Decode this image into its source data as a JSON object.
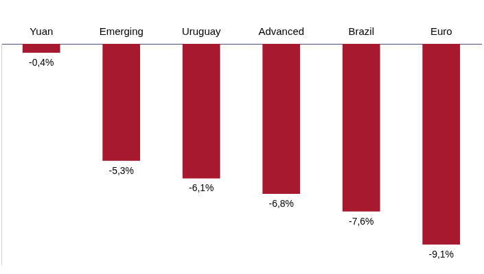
{
  "chart_data": {
    "type": "bar",
    "categories": [
      "Yuan",
      "Emerging",
      "Uruguay",
      "Advanced",
      "Brazil",
      "Euro"
    ],
    "values": [
      -0.4,
      -5.3,
      -6.1,
      -6.8,
      -7.6,
      -9.1
    ],
    "value_labels": [
      "-0,4%",
      "-5,3%",
      "-6,1%",
      "-6,8%",
      "-7,6%",
      "-9,1%"
    ],
    "color": "#a6192e",
    "ylim": [
      -10,
      0
    ],
    "grid": false,
    "data_labels": true,
    "tick_labels": "x"
  }
}
